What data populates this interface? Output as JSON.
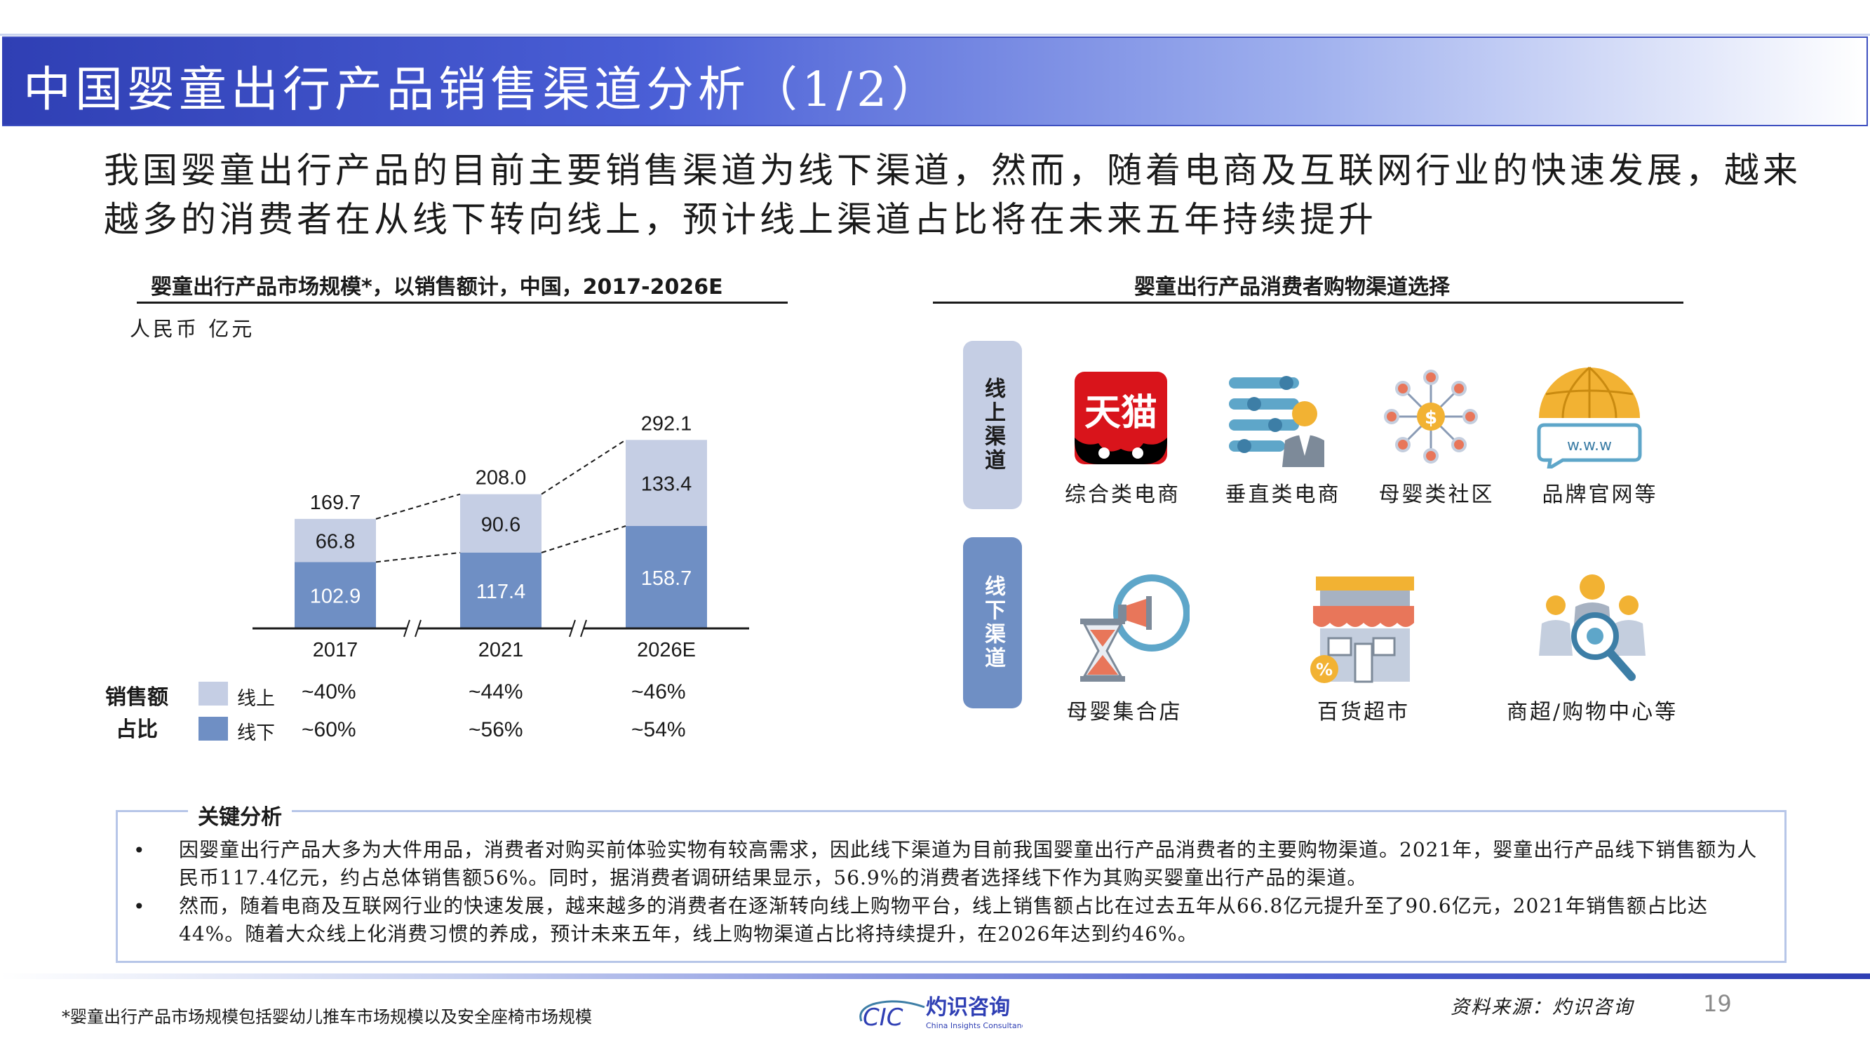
{
  "header": {
    "title": "中国婴童出行产品销售渠道分析（1/2）"
  },
  "lead": "我国婴童出行产品的目前主要销售渠道为线下渠道，然而，随着电商及互联网行业的快速发展，越来越多的消费者在从线下转向线上，预计线上渠道占比将在未来五年持续提升",
  "left_section": {
    "title": "婴童出行产品市场规模*，以销售额计，中国，2017-2026E",
    "unit": "人民币 亿元",
    "share_label_line1": "销售额",
    "share_label_line2": "占比",
    "legend": [
      {
        "label": "线上",
        "color": "#c5cee4"
      },
      {
        "label": "线下",
        "color": "#6f8fc4"
      }
    ],
    "shares_online": [
      "~40%",
      "~44%",
      "~46%"
    ],
    "shares_offline": [
      "~60%",
      "~56%",
      "~54%"
    ]
  },
  "chart_data": {
    "type": "bar",
    "stacked": true,
    "categories": [
      "2017",
      "2021",
      "2026E"
    ],
    "series": [
      {
        "name": "线下",
        "values": [
          102.9,
          117.4,
          158.7
        ],
        "color": "#6f8fc4"
      },
      {
        "name": "线上",
        "values": [
          66.8,
          90.6,
          133.4
        ],
        "color": "#c5cee4"
      }
    ],
    "totals": [
      169.7,
      208.0,
      292.1
    ],
    "totals_labels": [
      "169.7",
      "208.0",
      "292.1"
    ],
    "value_labels": {
      "offline": [
        "102.9",
        "117.4",
        "158.7"
      ],
      "online": [
        "66.8",
        "90.6",
        "133.4"
      ]
    },
    "title": "婴童出行产品市场规模*，以销售额计，中国，2017-2026E",
    "ylabel": "人民币 亿元",
    "axis_breaks": true
  },
  "right_section": {
    "title": "婴童出行产品消费者购物渠道选择",
    "online_label": "线上渠道",
    "offline_label": "线下渠道",
    "online_items": [
      {
        "label": "综合类电商",
        "icon": "tmall-logo-icon"
      },
      {
        "label": "垂直类电商",
        "icon": "vertical-ecommerce-icon"
      },
      {
        "label": "母婴类社区",
        "icon": "community-network-icon"
      },
      {
        "label": "品牌官网等",
        "icon": "website-globe-icon"
      }
    ],
    "offline_items": [
      {
        "label": "母婴集合店",
        "icon": "hourglass-megaphone-icon"
      },
      {
        "label": "百货超市",
        "icon": "store-icon"
      },
      {
        "label": "商超/购物中心等",
        "icon": "shopping-people-icon"
      }
    ],
    "tmall_text": "天猫",
    "www_text": "w.w.w",
    "colors": {
      "pill": "#c5cee4",
      "pill_offline": "#6f8fc4"
    }
  },
  "key_analysis": {
    "title": "关键分析",
    "bullets": [
      "因婴童出行产品大多为大件用品，消费者对购买前体验实物有较高需求，因此线下渠道为目前我国婴童出行产品消费者的主要购物渠道。2021年，婴童出行产品线下销售额为人民币117.4亿元，约占总体销售额56%。同时，据消费者调研结果显示，56.9%的消费者选择线下作为其购买婴童出行产品的渠道。",
      "然而，随着电商及互联网行业的快速发展，越来越多的消费者在逐渐转向线上购物平台，线上销售额占比在过去五年从66.8亿元提升至了90.6亿元，2021年销售额占比达44%。随着大众线上化消费习惯的养成，预计未来五年，线上购物渠道占比将持续提升，在2026年达到约46%。"
    ],
    "bullet_symbol": "•"
  },
  "footer": {
    "footnote": "*婴童出行产品市场规模包括婴幼儿推车市场规模以及安全座椅市场规模",
    "logo_mark": "CIC",
    "logo_name": "灼识咨询",
    "logo_en": "China Insights Consultancy",
    "source": "资料来源：灼识咨询",
    "page": "19"
  }
}
